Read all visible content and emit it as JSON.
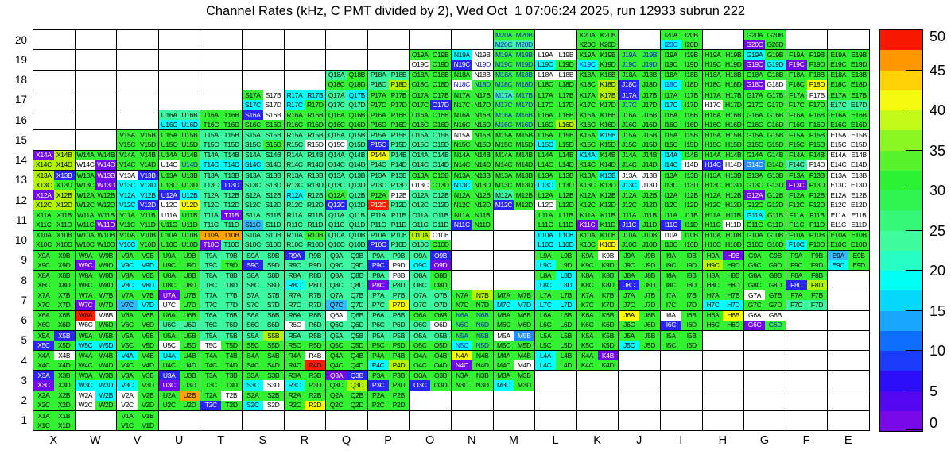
{
  "title": "Channel Rates (kHz, C PMT divided by 2), Wed Oct  1 07:06:24 2025, run 12933 subrun 222",
  "colorbar": {
    "tick_labels": [
      0,
      5,
      10,
      15,
      20,
      25,
      30,
      35,
      40,
      45,
      50
    ],
    "bands_bottom_to_top": [
      "#7708E8",
      "#5306F0",
      "#2B0DF7",
      "#1B3BFB",
      "#0E6EFD",
      "#18A5FE",
      "#06D8FA",
      "#00FFF3",
      "#25FFC4",
      "#3FFC9E",
      "#35F877",
      "#2EF44F",
      "#2BF232",
      "#57F42B",
      "#8BF722",
      "#C3FA18",
      "#F4FA0D",
      "#FFD205",
      "#FF9800",
      "#F81800"
    ]
  },
  "axes": {
    "x_labels": [
      "X",
      "W",
      "V",
      "U",
      "T",
      "S",
      "R",
      "Q",
      "P",
      "O",
      "N",
      "M",
      "L",
      "K",
      "J",
      "I",
      "H",
      "G",
      "F",
      "E"
    ],
    "y_labels": [
      "20",
      "19",
      "18",
      "17",
      "16",
      "15",
      "14",
      "13",
      "12",
      "11",
      "10",
      "9",
      "8",
      "7",
      "6",
      "5",
      "4",
      "3",
      "2",
      "1"
    ]
  },
  "palette": {
    "W": "#FFFFFF",
    "v": "#7109EA",
    "b": "#2A24F4",
    "d": "#1E8CFE",
    "l": "#33BBFF",
    "c": "#00FFFF",
    "s": "#3BF8A0",
    "g": "#32F232",
    "y": "#B5F400",
    "Y": "#FDFF00",
    "o": "#FFA500",
    "O": "#FF7000",
    "r": "#FF1E00"
  },
  "text_colors": {
    "default": "#000000",
    "blue": "#1212CC",
    "white": "#FFFFFF"
  },
  "dark_codes": "vbd",
  "blue_text_cells": [
    "M20A",
    "M20B",
    "M20C",
    "M20D",
    "M19A",
    "M19B",
    "M19C",
    "M19D",
    "M18A",
    "M18B",
    "M18C",
    "M18D",
    "M17A",
    "M17B",
    "M17C",
    "M17D",
    "M16A",
    "M16B",
    "M16C",
    "M16D",
    "J19A",
    "J19B",
    "J19C",
    "J19D",
    "N19C",
    "N19D",
    "N18C",
    "N18D",
    "N6A",
    "N6B",
    "N6C",
    "N6D",
    "N5A",
    "N5B",
    "N5C",
    "N5D",
    "J18C",
    "J17C",
    "J11C",
    "J8C",
    "I20C",
    "I18C",
    "K19C",
    "U14D",
    "G6D"
  ],
  "white_text_cells": [
    "P12C"
  ],
  "suffix_layout": [
    [
      "A",
      "B"
    ],
    [
      "C",
      "D"
    ]
  ],
  "chart_data": {
    "type": "heatmap",
    "title": "Channel Rates (kHz, C PMT divided by 2), Wed Oct  1 07:06:24 2025, run 12933 subrun 222",
    "xlabel_ticks": [
      "X",
      "W",
      "V",
      "U",
      "T",
      "S",
      "R",
      "Q",
      "P",
      "O",
      "N",
      "M",
      "L",
      "K",
      "J",
      "I",
      "H",
      "G",
      "F",
      "E"
    ],
    "ylabel_ticks": [
      20,
      19,
      18,
      17,
      16,
      15,
      14,
      13,
      12,
      11,
      10,
      9,
      8,
      7,
      6,
      5,
      4,
      3,
      2,
      1
    ],
    "zlim": [
      0,
      50
    ],
    "legend_position": "right-colorbar",
    "code_to_kHz": {
      "W": 0,
      "v": 1,
      "b": 6,
      "d": 11,
      "l": 13,
      "c": 16,
      "s": 21,
      "g": 27,
      "y": 33,
      "Y": 38,
      "o": 41,
      "O": 44,
      "r": 49
    },
    "cell_note": "Each grid position (column letter + row number) holds 4 channels in quadrants A,B / C,D. String gives color codes for A,B,C,D. Missing key = empty bin.",
    "rows": [
      {
        "row": 20,
        "cells": {
          "M": "ggss",
          "K": "gggg",
          "I": "ggcg",
          "G": "ggvg"
        }
      },
      {
        "row": 19,
        "cells": {
          "O": "ggWg",
          "N": "cWbW",
          "M": "gggg",
          "L": "WWcg",
          "K": "ggcg",
          "J": "gggg",
          "I": "gggg",
          "H": "gggg",
          "G": "cgvc",
          "F": "ggvg",
          "E": "gggg"
        }
      },
      {
        "row": 18,
        "cells": {
          "Q": "sggg",
          "P": "sssy",
          "O": "gggg",
          "N": "gWWg",
          "M": "gggg",
          "L": "WWgg",
          "K": "gggy",
          "J": "ggbg",
          "I": "ggcg",
          "H": "gggg",
          "G": "ggvW",
          "F": "gggY",
          "E": "gggg"
        }
      },
      {
        "row": 17,
        "cells": {
          "S": "gWcW",
          "R": "cccg",
          "Q": "scss",
          "P": "gggg",
          "O": "gggb",
          "N": "gggg",
          "M": "sggg",
          "L": "gggg",
          "K": "gygg",
          "J": "bggg",
          "I": "ggcg",
          "H": "ggWg",
          "G": "gggg",
          "F": "gWgg",
          "E": "ggss"
        }
      },
      {
        "row": 16,
        "cells": {
          "U": "sscc",
          "T": "gggg",
          "S": "bWgg",
          "R": "gggg",
          "Q": "gggg",
          "P": "gggg",
          "O": "gggg",
          "N": "gggg",
          "M": "gggg",
          "L": "gggy",
          "K": "gggg",
          "J": "gggg",
          "I": "gggg",
          "H": "gggg",
          "G": "gggg",
          "F": "gggg",
          "E": "gggg"
        }
      },
      {
        "row": 15,
        "cells": {
          "V": "gggg",
          "U": "gggg",
          "T": "ssss",
          "S": "sssg",
          "R": "sssW",
          "Q": "ssWs",
          "P": "ssbs",
          "O": "ssss",
          "N": "Wggg",
          "M": "gggg",
          "L": "ggcg",
          "K": "gcgg",
          "J": "gggg",
          "I": "gggg",
          "H": "gggg",
          "G": "gggg",
          "F": "gggg",
          "E": "WWWW"
        }
      },
      {
        "row": 14,
        "cells": {
          "X": "vyyy",
          "W": "ggWv",
          "V": "gggg",
          "U": "ggWg",
          "T": "sscc",
          "S": "sscs",
          "R": "ssss",
          "Q": "ssss",
          "P": "Ysss",
          "O": "ssss",
          "N": "gggg",
          "M": "gggg",
          "L": "gggg",
          "K": "cggg",
          "J": "gggg",
          "I": "cgcW",
          "H": "ggbW",
          "G": "ggdg",
          "F": "ggsW",
          "E": "WWWW"
        }
      },
      {
        "row": 13,
        "cells": {
          "X": "ybyg",
          "W": "gvgv",
          "V": "Wbcc",
          "U": "gggg",
          "T": "sssb",
          "S": "ssss",
          "R": "ssss",
          "Q": "ssss",
          "P": "ssss",
          "O": "ggWg",
          "N": "ggcg",
          "M": "gggg",
          "L": "ggcg",
          "K": "gcgg",
          "J": "WWcW",
          "I": "gggg",
          "H": "gggg",
          "G": "gggg",
          "F": "ggvg",
          "E": "WWWW"
        }
      },
      {
        "row": 12,
        "cells": {
          "X": "vyyy",
          "W": "gggg",
          "V": "cccb",
          "U": "bcWY",
          "T": "ssss",
          "S": "ssss",
          "R": "csss",
          "Q": "gsbs",
          "P": "gWrs",
          "O": "ssss",
          "N": "gggg",
          "M": "sgbg",
          "L": "ggWg",
          "K": "gggg",
          "J": "gggg",
          "I": "gggg",
          "H": "gggg",
          "G": "vggg",
          "F": "gggg",
          "E": "WWWW"
        }
      },
      {
        "row": 11,
        "cells": {
          "X": "gggg",
          "W": "gggv",
          "V": "gggg",
          "U": "Wggg",
          "T": "svss",
          "S": "ssls",
          "R": "ssss",
          "Q": "ssss",
          "P": "ssss",
          "O": "ssss",
          "N": "ggbg",
          "L": "gggg",
          "K": "ggvg",
          "J": "ggbg",
          "I": "ggbg",
          "H": "gggW",
          "G": "cggg",
          "F": "gggg",
          "E": "WWWW"
        }
      },
      {
        "row": 10,
        "cells": {
          "X": "gggg",
          "W": "gggg",
          "V": "ggcg",
          "U": "gggg",
          "T": "oovs",
          "S": "ssss",
          "R": "sgss",
          "Q": "ssss",
          "P": "ssbs",
          "O": "yWsg",
          "L": "cccc",
          "K": "gggY",
          "J": "gggg",
          "I": "Wggg",
          "H": "gggg",
          "G": "gggg",
          "F": "ggcg",
          "E": "gggg"
        }
      },
      {
        "row": 9,
        "cells": {
          "X": "gggg",
          "W": "ggvg",
          "V": "ggcc",
          "U": "gggg",
          "T": "sssg",
          "S": "ssbs",
          "R": "bsss",
          "Q": "ssss",
          "P": "ssbW",
          "O": "sbcv",
          "L": "ggcg",
          "K": "gWgg",
          "J": "gggg",
          "I": "gggg",
          "H": "gvyg",
          "G": "gggg",
          "F": "gggg",
          "E": "lgcg"
        }
      },
      {
        "row": 8,
        "cells": {
          "X": "gggg",
          "W": "gggg",
          "V": "ggcc",
          "U": "gggg",
          "T": "ssss",
          "S": "ssss",
          "R": "sscs",
          "Q": "ssss",
          "P": "sWvs",
          "O": "sgsg",
          "L": "gccc",
          "K": "gggg",
          "J": "ggbg",
          "I": "gggg",
          "H": "gggg",
          "G": "gggg",
          "F": "ggby"
        }
      },
      {
        "row": 7,
        "cells": {
          "X": "gggg",
          "W": "ggvg",
          "V": "gglc",
          "U": "vgWg",
          "T": "ssss",
          "S": "ssss",
          "R": "ssss",
          "Q": "ssls",
          "P": "sssY",
          "O": "ssss",
          "N": "gygg",
          "M": "ggcc",
          "L": "ggcc",
          "K": "gggg",
          "J": "gggg",
          "I": "gggg",
          "H": "ggcc",
          "G": "Wggg",
          "F": "ggss"
        }
      },
      {
        "row": 6,
        "cells": {
          "X": "gggg",
          "W": "rWWg",
          "V": "gggg",
          "U": "ggss",
          "T": "ssss",
          "S": "ssss",
          "R": "ssWs",
          "Q": "Wsss",
          "P": "ssss",
          "O": "ggsW",
          "N": "gggg",
          "M": "gggg",
          "L": "gggg",
          "K": "gggg",
          "J": "Yggg",
          "I": "Wgbg",
          "H": "gYgg",
          "G": "WWvg"
        }
      },
      {
        "row": 5,
        "cells": {
          "X": "gbbg",
          "W": "ggcc",
          "V": "gggg",
          "U": "ggWg",
          "T": "ssWg",
          "S": "sygg",
          "R": "ssgg",
          "Q": "ssgg",
          "P": "ssgg",
          "O": "ssgg",
          "N": "ggcg",
          "M": "Wdgg",
          "L": "gggg",
          "K": "gggg",
          "J": "ggcg",
          "I": "gggg"
        }
      },
      {
        "row": 4,
        "cells": {
          "X": "gWgg",
          "W": "gggg",
          "V": "cggg",
          "U": "cggg",
          "T": "gggg",
          "S": "gggg",
          "R": "gWgr",
          "Q": "gggg",
          "P": "ggcy",
          "O": "gggg",
          "N": "Ygvg",
          "M": "gggW",
          "L": "cgcg",
          "K": "gvgg"
        }
      },
      {
        "row": 3,
        "cells": {
          "X": "bgvg",
          "W": "ggcc",
          "V": "ggcg",
          "U": "bgvg",
          "T": "gggg",
          "S": "ggcW",
          "R": "ggcg",
          "Q": "vbgy",
          "P": "ggbg",
          "O": "ggbg",
          "N": "gggg",
          "M": "ggcg"
        }
      },
      {
        "row": 2,
        "cells": {
          "X": "gggg",
          "W": "WcWg",
          "V": "WgWg",
          "U": "gogg",
          "T": "gWbg",
          "S": "ggcW",
          "R": "gggY",
          "Q": "gggg",
          "P": "gggg"
        }
      },
      {
        "row": 1,
        "cells": {
          "X": "gggg",
          "V": "gggg"
        }
      }
    ]
  }
}
